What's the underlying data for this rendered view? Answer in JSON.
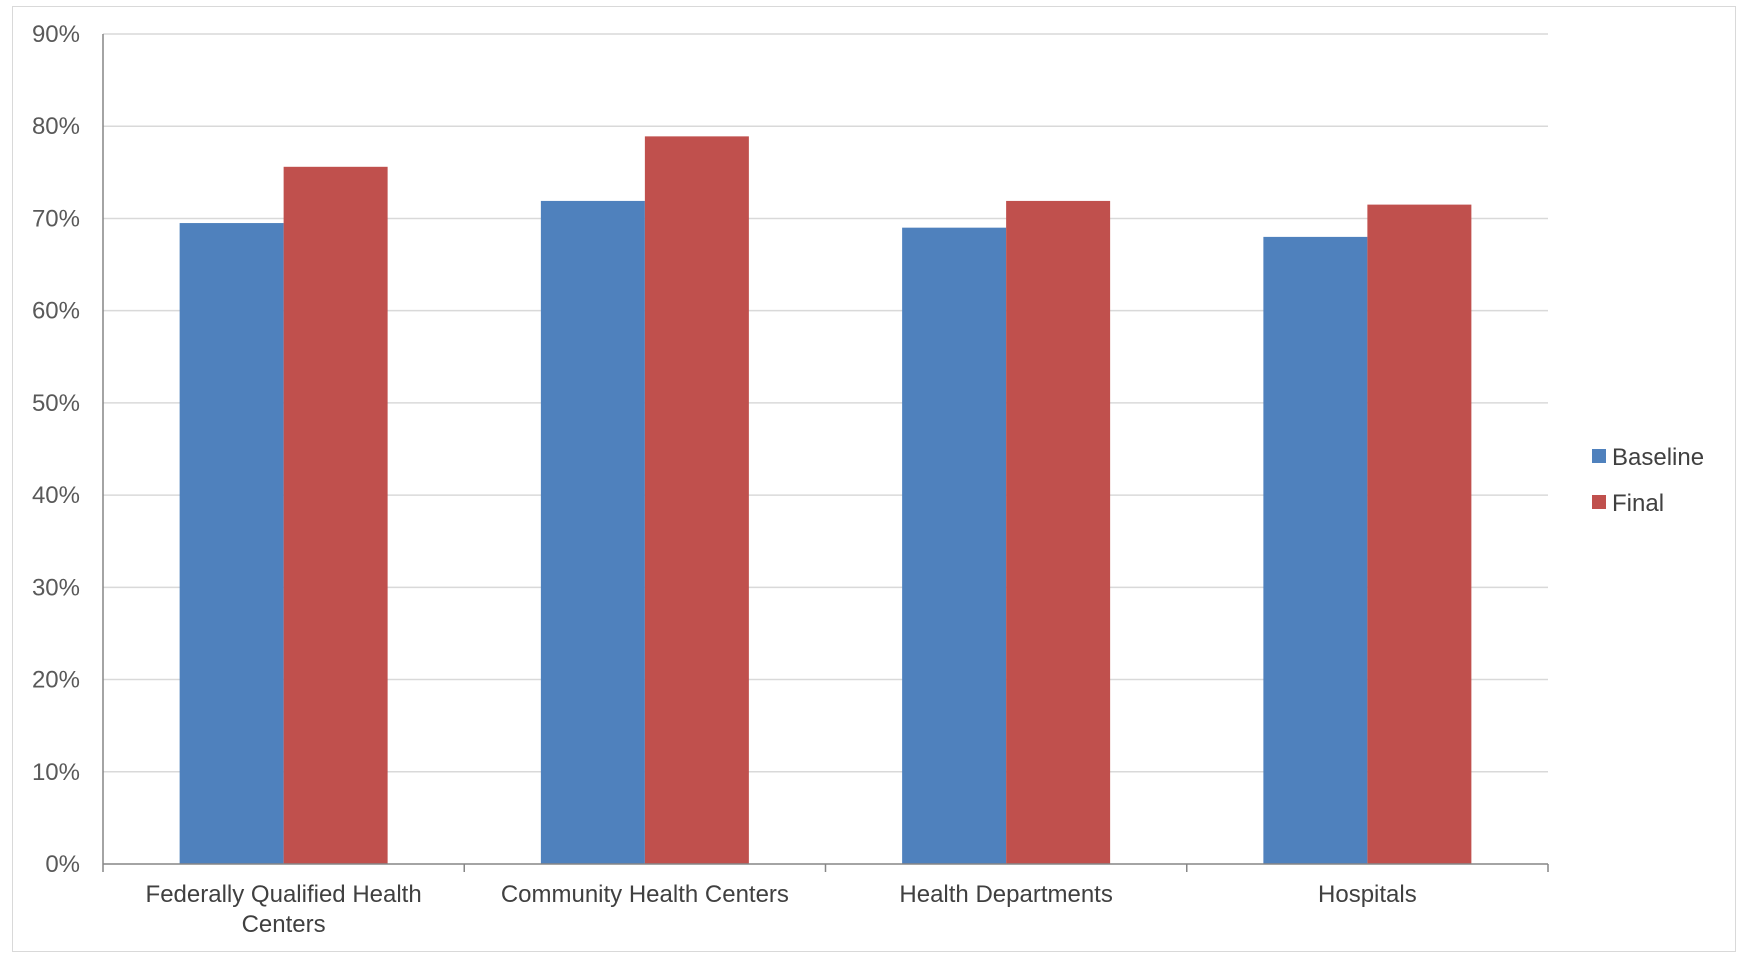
{
  "chart_data": {
    "type": "bar",
    "categories": [
      [
        "Federally Qualified Health",
        "Centers"
      ],
      [
        "Community Health Centers"
      ],
      [
        "Health Departments"
      ],
      [
        "Hospitals"
      ]
    ],
    "series": [
      {
        "name": "Baseline",
        "color": "#4f81bd",
        "values": [
          69.5,
          71.9,
          69.0,
          68.0
        ]
      },
      {
        "name": "Final",
        "color": "#c0504d",
        "values": [
          75.6,
          78.9,
          71.9,
          71.5
        ]
      }
    ],
    "yticks": [
      "0%",
      "10%",
      "20%",
      "30%",
      "40%",
      "50%",
      "60%",
      "70%",
      "80%",
      "90%"
    ],
    "ylim": [
      0,
      90
    ],
    "grid": true,
    "legend_position": "right"
  }
}
